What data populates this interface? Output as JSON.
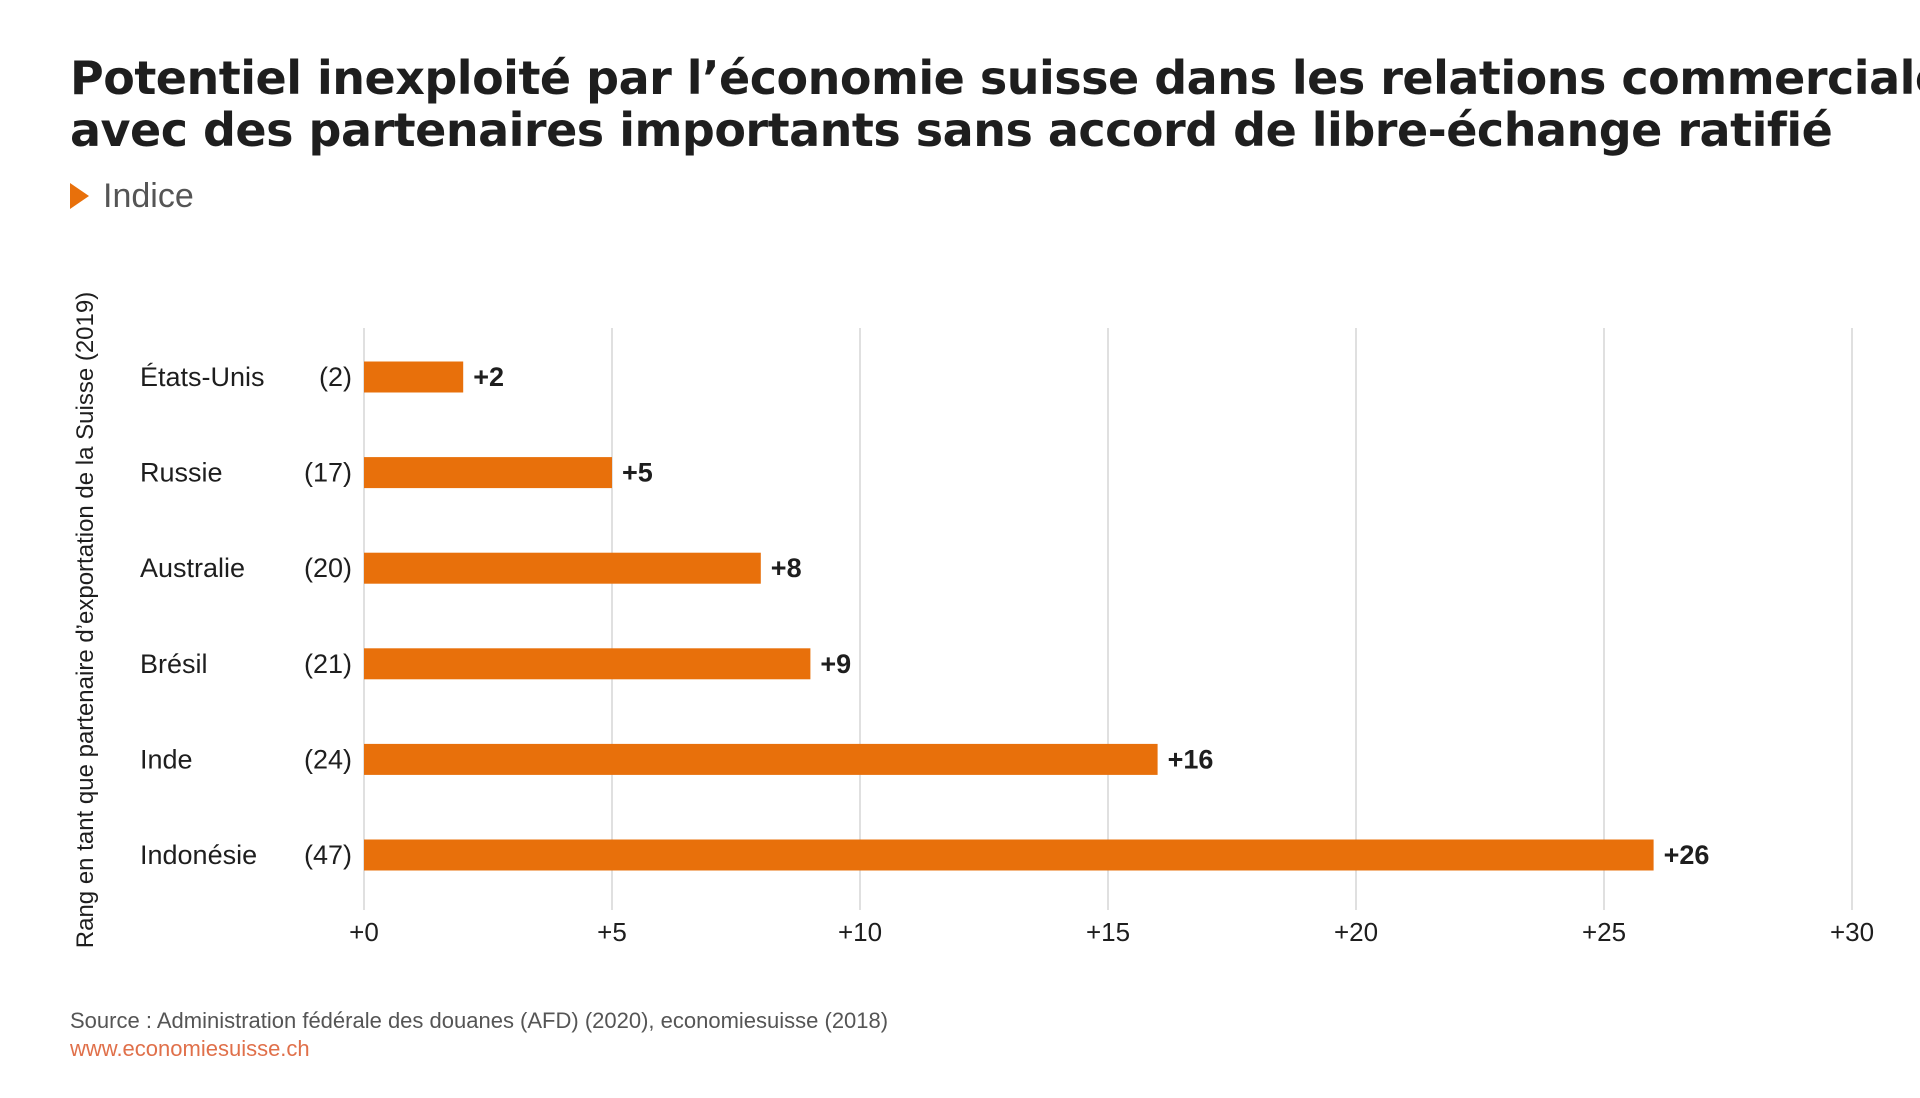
{
  "header": {
    "title_line1": "Potentiel inexploité par l’économie suisse dans les relations commerciales",
    "title_line2": "avec des partenaires importants sans accord de libre-échange ratifié",
    "subtitle": "Indice"
  },
  "chart_data": {
    "type": "bar",
    "orientation": "horizontal",
    "title": "Potentiel inexploité par l’économie suisse dans les relations commerciales avec des partenaires importants sans accord de libre-échange ratifié",
    "subtitle": "Indice",
    "ylabel": "Rang en tant que partenaire d’exportation de la Suisse (2019)",
    "xlabel": "",
    "categories": [
      "États-Unis",
      "Russie",
      "Australie",
      "Brésil",
      "Inde",
      "Indonésie"
    ],
    "ranks": [
      "(2)",
      "(17)",
      "(20)",
      "(21)",
      "(24)",
      "(47)"
    ],
    "values": [
      2,
      5,
      8,
      9,
      16,
      26
    ],
    "value_labels": [
      "+2",
      "+5",
      "+8",
      "+9",
      "+16",
      "+26"
    ],
    "xlim": [
      0,
      30
    ],
    "xticks": [
      0,
      5,
      10,
      15,
      20,
      25,
      30
    ],
    "xtick_labels": [
      "+0",
      "+5",
      "+10",
      "+15",
      "+20",
      "+25",
      "+30"
    ],
    "grid": "vertical",
    "legend": "none",
    "bar_color": "#e8700b",
    "grid_color": "#d6d6d6"
  },
  "footer": {
    "source": "Source : Administration fédérale des douanes (AFD) (2020), economiesuisse (2018)",
    "url": "www.economiesuisse.ch"
  }
}
